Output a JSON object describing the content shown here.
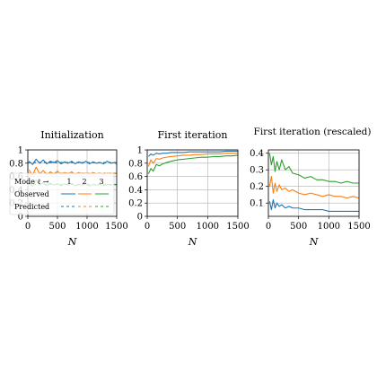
{
  "figure": {
    "xlabel": "N"
  },
  "legend": {
    "header": "Mode ℓ →",
    "modes": [
      "1",
      "2",
      "3"
    ],
    "rows": [
      "Observed",
      "Predicted"
    ],
    "colors": [
      "#1f77b4",
      "#ff7f0e",
      "#2ca02c"
    ]
  },
  "chart_data": [
    {
      "type": "line",
      "title": "Initialization",
      "xlabel": "N",
      "ylabel": "",
      "xlim": [
        0,
        1500
      ],
      "ylim": [
        0,
        1
      ],
      "xticks": [
        0,
        500,
        1000,
        1500
      ],
      "yticks": [
        0,
        0.2,
        0.4,
        0.6,
        0.8,
        1
      ],
      "ytick_labels": [
        "0",
        "0.2",
        "0.4",
        "0.6",
        "0.8",
        "1"
      ],
      "grid": true,
      "legend_position": "lower-left",
      "series": [
        {
          "name": "1",
          "color": "#1f77b4",
          "style": "solid",
          "x": [
            20,
            80,
            140,
            200,
            260,
            320,
            380,
            440,
            500,
            560,
            620,
            680,
            740,
            800,
            860,
            920,
            980,
            1040,
            1100,
            1160,
            1220,
            1280,
            1340,
            1400,
            1460,
            1500
          ],
          "y": [
            0.83,
            0.78,
            0.86,
            0.8,
            0.85,
            0.79,
            0.83,
            0.81,
            0.84,
            0.79,
            0.82,
            0.8,
            0.83,
            0.79,
            0.82,
            0.8,
            0.83,
            0.79,
            0.82,
            0.8,
            0.81,
            0.79,
            0.83,
            0.8,
            0.81,
            0.79
          ]
        },
        {
          "name": "2",
          "color": "#ff7f0e",
          "style": "solid",
          "x": [
            20,
            80,
            140,
            200,
            260,
            320,
            380,
            440,
            500,
            560,
            620,
            680,
            740,
            800,
            860,
            920,
            980,
            1040,
            1100,
            1160,
            1220,
            1280,
            1340,
            1400,
            1460,
            1500
          ],
          "y": [
            0.7,
            0.62,
            0.74,
            0.64,
            0.69,
            0.63,
            0.67,
            0.64,
            0.68,
            0.63,
            0.66,
            0.64,
            0.67,
            0.63,
            0.66,
            0.64,
            0.65,
            0.63,
            0.66,
            0.64,
            0.65,
            0.63,
            0.65,
            0.64,
            0.65,
            0.64
          ]
        },
        {
          "name": "3",
          "color": "#2ca02c",
          "style": "solid",
          "x": [
            20,
            80,
            140,
            200,
            260,
            320,
            380,
            440,
            500,
            560,
            620,
            680,
            740,
            800,
            860,
            920,
            980,
            1040,
            1100,
            1160,
            1220,
            1280,
            1340,
            1400,
            1460,
            1500
          ],
          "y": [
            0.52,
            0.45,
            0.55,
            0.47,
            0.51,
            0.46,
            0.5,
            0.47,
            0.49,
            0.46,
            0.49,
            0.47,
            0.5,
            0.46,
            0.48,
            0.47,
            0.49,
            0.46,
            0.48,
            0.47,
            0.48,
            0.46,
            0.48,
            0.47,
            0.48,
            0.47
          ]
        },
        {
          "name": "1",
          "color": "#1f77b4",
          "style": "dashed",
          "x": [
            0,
            1500
          ],
          "y": [
            0.81,
            0.81
          ]
        },
        {
          "name": "2",
          "color": "#ff7f0e",
          "style": "dashed",
          "x": [
            0,
            1500
          ],
          "y": [
            0.65,
            0.65
          ]
        },
        {
          "name": "3",
          "color": "#2ca02c",
          "style": "dashed",
          "x": [
            0,
            1500
          ],
          "y": [
            0.48,
            0.48
          ]
        }
      ]
    },
    {
      "type": "line",
      "title": "First iteration",
      "xlabel": "N",
      "ylabel": "",
      "xlim": [
        0,
        1500
      ],
      "ylim": [
        0,
        1
      ],
      "xticks": [
        0,
        500,
        1000,
        1500
      ],
      "yticks": [
        0,
        0.2,
        0.4,
        0.6,
        0.8,
        1
      ],
      "ytick_labels": [
        "0",
        "0.2",
        "0.4",
        "0.6",
        "0.8",
        "1"
      ],
      "grid": true,
      "series": [
        {
          "name": "1",
          "color": "#1f77b4",
          "style": "solid",
          "x": [
            20,
            60,
            100,
            150,
            200,
            260,
            320,
            400,
            500,
            600,
            700,
            800,
            900,
            1000,
            1100,
            1200,
            1300,
            1400,
            1500
          ],
          "y": [
            0.9,
            0.94,
            0.92,
            0.95,
            0.94,
            0.95,
            0.95,
            0.96,
            0.96,
            0.96,
            0.97,
            0.97,
            0.97,
            0.97,
            0.97,
            0.97,
            0.98,
            0.98,
            0.98
          ]
        },
        {
          "name": "2",
          "color": "#ff7f0e",
          "style": "solid",
          "x": [
            20,
            60,
            100,
            150,
            200,
            260,
            320,
            400,
            500,
            600,
            700,
            800,
            900,
            1000,
            1100,
            1200,
            1300,
            1400,
            1500
          ],
          "y": [
            0.75,
            0.85,
            0.8,
            0.87,
            0.86,
            0.88,
            0.89,
            0.9,
            0.91,
            0.92,
            0.92,
            0.93,
            0.93,
            0.94,
            0.94,
            0.94,
            0.95,
            0.95,
            0.95
          ]
        },
        {
          "name": "3",
          "color": "#2ca02c",
          "style": "solid",
          "x": [
            20,
            60,
            100,
            150,
            200,
            260,
            320,
            400,
            500,
            600,
            700,
            800,
            900,
            1000,
            1100,
            1200,
            1300,
            1400,
            1500
          ],
          "y": [
            0.64,
            0.72,
            0.68,
            0.78,
            0.76,
            0.79,
            0.81,
            0.83,
            0.85,
            0.86,
            0.87,
            0.88,
            0.89,
            0.89,
            0.9,
            0.9,
            0.91,
            0.91,
            0.92
          ]
        }
      ]
    },
    {
      "type": "line",
      "title": "First iteration (rescaled)",
      "xlabel": "N",
      "ylabel": "",
      "xlim": [
        0,
        1500
      ],
      "ylim": [
        0.02,
        0.42
      ],
      "xticks": [
        0,
        500,
        1000,
        1500
      ],
      "yticks": [
        0.1,
        0.2,
        0.3,
        0.4
      ],
      "ytick_labels": [
        "0.1",
        "0.2",
        "0.3",
        "0.4"
      ],
      "grid": true,
      "series": [
        {
          "name": "1",
          "color": "#1f77b4",
          "style": "solid",
          "x": [
            20,
            50,
            80,
            110,
            140,
            180,
            220,
            280,
            340,
            400,
            500,
            600,
            700,
            800,
            900,
            1000,
            1100,
            1200,
            1300,
            1400,
            1500
          ],
          "y": [
            0.11,
            0.06,
            0.12,
            0.07,
            0.1,
            0.08,
            0.09,
            0.07,
            0.08,
            0.07,
            0.07,
            0.06,
            0.06,
            0.06,
            0.06,
            0.05,
            0.05,
            0.05,
            0.05,
            0.05,
            0.05
          ]
        },
        {
          "name": "2",
          "color": "#ff7f0e",
          "style": "solid",
          "x": [
            20,
            50,
            80,
            110,
            140,
            180,
            220,
            280,
            340,
            400,
            500,
            600,
            700,
            800,
            900,
            1000,
            1100,
            1200,
            1300,
            1400,
            1500
          ],
          "y": [
            0.2,
            0.26,
            0.16,
            0.22,
            0.17,
            0.21,
            0.18,
            0.19,
            0.17,
            0.18,
            0.16,
            0.15,
            0.16,
            0.15,
            0.14,
            0.15,
            0.14,
            0.14,
            0.13,
            0.14,
            0.13
          ]
        },
        {
          "name": "3",
          "color": "#2ca02c",
          "style": "solid",
          "x": [
            20,
            50,
            80,
            110,
            140,
            180,
            220,
            280,
            340,
            400,
            500,
            600,
            700,
            800,
            900,
            1000,
            1100,
            1200,
            1300,
            1400,
            1500
          ],
          "y": [
            0.4,
            0.33,
            0.38,
            0.29,
            0.35,
            0.3,
            0.36,
            0.3,
            0.32,
            0.28,
            0.27,
            0.25,
            0.26,
            0.24,
            0.24,
            0.23,
            0.23,
            0.22,
            0.23,
            0.22,
            0.22
          ]
        }
      ]
    }
  ]
}
